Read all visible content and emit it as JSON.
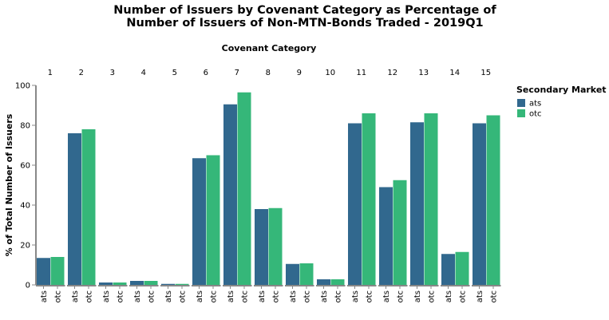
{
  "chart_data": {
    "type": "bar",
    "title": [
      "Number of Issuers by Covenant Category as Percentage of",
      "Number of Issuers of Non-MTN-Bonds Traded - 2019Q1"
    ],
    "facet_title": "Covenant Category",
    "ylabel": "% of Total Number of Issuers",
    "ylim": [
      0,
      100
    ],
    "yticks": [
      0,
      20,
      40,
      60,
      80,
      100
    ],
    "categories": [
      "1",
      "2",
      "3",
      "4",
      "5",
      "6",
      "7",
      "8",
      "9",
      "10",
      "11",
      "12",
      "13",
      "14",
      "15"
    ],
    "subcategories": [
      "ats",
      "otc"
    ],
    "series": [
      {
        "name": "ats",
        "color": "#31688e",
        "values": [
          13.5,
          76,
          1.2,
          2.0,
          0.5,
          63.5,
          90.5,
          38,
          10.5,
          2.8,
          81,
          49,
          81.5,
          15.5,
          81
        ]
      },
      {
        "name": "otc",
        "color": "#35b779",
        "values": [
          14,
          78,
          1.2,
          2.0,
          0.5,
          65,
          96.5,
          38.5,
          10.8,
          2.8,
          86,
          52.5,
          86,
          16.5,
          85
        ]
      }
    ],
    "legend": {
      "title": "Secondary Market",
      "position": "right",
      "items": [
        {
          "label": "ats",
          "color": "#31688e"
        },
        {
          "label": "otc",
          "color": "#35b779"
        }
      ]
    },
    "grid": false
  }
}
